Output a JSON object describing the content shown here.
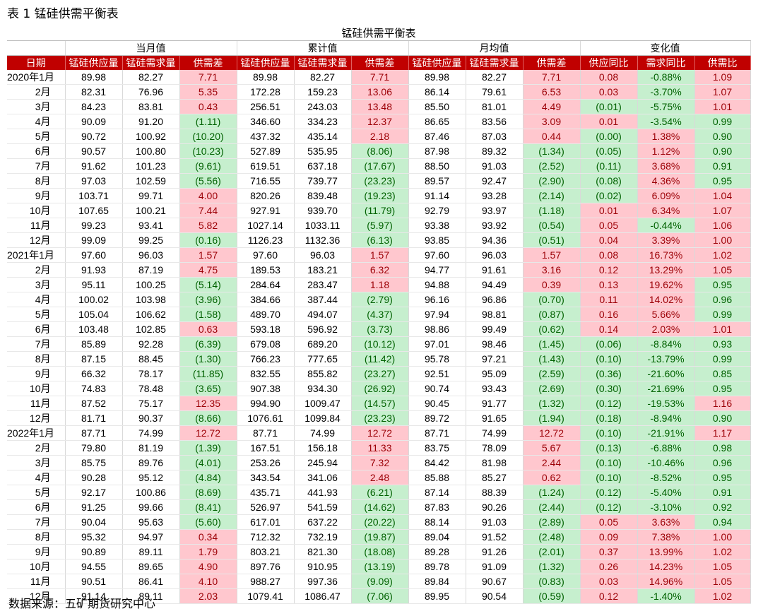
{
  "caption": "表 1 锰硅供需平衡表",
  "source": "数据来源：五矿期货研究中心",
  "table": {
    "title": "锰硅供需平衡表",
    "groups": [
      "当月值",
      "累计值",
      "月均值",
      "变化值"
    ],
    "headers": [
      "日期",
      "锰硅供应量",
      "锰硅需求量",
      "供需差",
      "锰硅供应量",
      "锰硅需求量",
      "供需差",
      "锰硅供应量",
      "锰硅需求量",
      "供需差",
      "供应同比",
      "需求同比",
      "供需比"
    ],
    "rows": [
      [
        "2020年1月",
        "89.98",
        "82.27",
        "7.71",
        "89.98",
        "82.27",
        "7.71",
        "89.98",
        "82.27",
        "7.71",
        "0.08",
        "-0.88%",
        "1.09"
      ],
      [
        "2月",
        "82.31",
        "76.96",
        "5.35",
        "172.28",
        "159.23",
        "13.06",
        "86.14",
        "79.61",
        "6.53",
        "0.03",
        "-3.70%",
        "1.07"
      ],
      [
        "3月",
        "84.23",
        "83.81",
        "0.43",
        "256.51",
        "243.03",
        "13.48",
        "85.50",
        "81.01",
        "4.49",
        "(0.01)",
        "-5.75%",
        "1.01"
      ],
      [
        "4月",
        "90.09",
        "91.20",
        "(1.11)",
        "346.60",
        "334.23",
        "12.37",
        "86.65",
        "83.56",
        "3.09",
        "0.01",
        "-3.54%",
        "0.99"
      ],
      [
        "5月",
        "90.72",
        "100.92",
        "(10.20)",
        "437.32",
        "435.14",
        "2.18",
        "87.46",
        "87.03",
        "0.44",
        "(0.00)",
        "1.38%",
        "0.90"
      ],
      [
        "6月",
        "90.57",
        "100.80",
        "(10.23)",
        "527.89",
        "535.95",
        "(8.06)",
        "87.98",
        "89.32",
        "(1.34)",
        "(0.05)",
        "1.12%",
        "0.90"
      ],
      [
        "7月",
        "91.62",
        "101.23",
        "(9.61)",
        "619.51",
        "637.18",
        "(17.67)",
        "88.50",
        "91.03",
        "(2.52)",
        "(0.11)",
        "3.68%",
        "0.91"
      ],
      [
        "8月",
        "97.03",
        "102.59",
        "(5.56)",
        "716.55",
        "739.77",
        "(23.23)",
        "89.57",
        "92.47",
        "(2.90)",
        "(0.08)",
        "4.36%",
        "0.95"
      ],
      [
        "9月",
        "103.71",
        "99.71",
        "4.00",
        "820.26",
        "839.48",
        "(19.23)",
        "91.14",
        "93.28",
        "(2.14)",
        "(0.02)",
        "6.09%",
        "1.04"
      ],
      [
        "10月",
        "107.65",
        "100.21",
        "7.44",
        "927.91",
        "939.70",
        "(11.79)",
        "92.79",
        "93.97",
        "(1.18)",
        "0.01",
        "6.34%",
        "1.07"
      ],
      [
        "11月",
        "99.23",
        "93.41",
        "5.82",
        "1027.14",
        "1033.11",
        "(5.97)",
        "93.38",
        "93.92",
        "(0.54)",
        "0.05",
        "-0.44%",
        "1.06"
      ],
      [
        "12月",
        "99.09",
        "99.25",
        "(0.16)",
        "1126.23",
        "1132.36",
        "(6.13)",
        "93.85",
        "94.36",
        "(0.51)",
        "0.04",
        "3.39%",
        "1.00"
      ],
      [
        "2021年1月",
        "97.60",
        "96.03",
        "1.57",
        "97.60",
        "96.03",
        "1.57",
        "97.60",
        "96.03",
        "1.57",
        "0.08",
        "16.73%",
        "1.02"
      ],
      [
        "2月",
        "91.93",
        "87.19",
        "4.75",
        "189.53",
        "183.21",
        "6.32",
        "94.77",
        "91.61",
        "3.16",
        "0.12",
        "13.29%",
        "1.05"
      ],
      [
        "3月",
        "95.11",
        "100.25",
        "(5.14)",
        "284.64",
        "283.47",
        "1.18",
        "94.88",
        "94.49",
        "0.39",
        "0.13",
        "19.62%",
        "0.95"
      ],
      [
        "4月",
        "100.02",
        "103.98",
        "(3.96)",
        "384.66",
        "387.44",
        "(2.79)",
        "96.16",
        "96.86",
        "(0.70)",
        "0.11",
        "14.02%",
        "0.96"
      ],
      [
        "5月",
        "105.04",
        "106.62",
        "(1.58)",
        "489.70",
        "494.07",
        "(4.37)",
        "97.94",
        "98.81",
        "(0.87)",
        "0.16",
        "5.66%",
        "0.99"
      ],
      [
        "6月",
        "103.48",
        "102.85",
        "0.63",
        "593.18",
        "596.92",
        "(3.73)",
        "98.86",
        "99.49",
        "(0.62)",
        "0.14",
        "2.03%",
        "1.01"
      ],
      [
        "7月",
        "85.89",
        "92.28",
        "(6.39)",
        "679.08",
        "689.20",
        "(10.12)",
        "97.01",
        "98.46",
        "(1.45)",
        "(0.06)",
        "-8.84%",
        "0.93"
      ],
      [
        "8月",
        "87.15",
        "88.45",
        "(1.30)",
        "766.23",
        "777.65",
        "(11.42)",
        "95.78",
        "97.21",
        "(1.43)",
        "(0.10)",
        "-13.79%",
        "0.99"
      ],
      [
        "9月",
        "66.32",
        "78.17",
        "(11.85)",
        "832.55",
        "855.82",
        "(23.27)",
        "92.51",
        "95.09",
        "(2.59)",
        "(0.36)",
        "-21.60%",
        "0.85"
      ],
      [
        "10月",
        "74.83",
        "78.48",
        "(3.65)",
        "907.38",
        "934.30",
        "(26.92)",
        "90.74",
        "93.43",
        "(2.69)",
        "(0.30)",
        "-21.69%",
        "0.95"
      ],
      [
        "11月",
        "87.52",
        "75.17",
        "12.35",
        "994.90",
        "1009.47",
        "(14.57)",
        "90.45",
        "91.77",
        "(1.32)",
        "(0.12)",
        "-19.53%",
        "1.16"
      ],
      [
        "12月",
        "81.71",
        "90.37",
        "(8.66)",
        "1076.61",
        "1099.84",
        "(23.23)",
        "89.72",
        "91.65",
        "(1.94)",
        "(0.18)",
        "-8.94%",
        "0.90"
      ],
      [
        "2022年1月",
        "87.71",
        "74.99",
        "12.72",
        "87.71",
        "74.99",
        "12.72",
        "87.71",
        "74.99",
        "12.72",
        "(0.10)",
        "-21.91%",
        "1.17"
      ],
      [
        "2月",
        "79.80",
        "81.19",
        "(1.39)",
        "167.51",
        "156.18",
        "11.33",
        "83.75",
        "78.09",
        "5.67",
        "(0.13)",
        "-6.88%",
        "0.98"
      ],
      [
        "3月",
        "85.75",
        "89.76",
        "(4.01)",
        "253.26",
        "245.94",
        "7.32",
        "84.42",
        "81.98",
        "2.44",
        "(0.10)",
        "-10.46%",
        "0.96"
      ],
      [
        "4月",
        "90.28",
        "95.12",
        "(4.84)",
        "343.54",
        "341.06",
        "2.48",
        "85.88",
        "85.27",
        "0.62",
        "(0.10)",
        "-8.52%",
        "0.95"
      ],
      [
        "5月",
        "92.17",
        "100.86",
        "(8.69)",
        "435.71",
        "441.93",
        "(6.21)",
        "87.14",
        "88.39",
        "(1.24)",
        "(0.12)",
        "-5.40%",
        "0.91"
      ],
      [
        "6月",
        "91.25",
        "99.66",
        "(8.41)",
        "526.97",
        "541.59",
        "(14.62)",
        "87.83",
        "90.26",
        "(2.44)",
        "(0.12)",
        "-3.10%",
        "0.92"
      ],
      [
        "7月",
        "90.04",
        "95.63",
        "(5.60)",
        "617.01",
        "637.22",
        "(20.22)",
        "88.14",
        "91.03",
        "(2.89)",
        "0.05",
        "3.63%",
        "0.94"
      ],
      [
        "8月",
        "95.32",
        "94.97",
        "0.34",
        "712.32",
        "732.19",
        "(19.87)",
        "89.04",
        "91.52",
        "(2.48)",
        "0.09",
        "7.38%",
        "1.00"
      ],
      [
        "9月",
        "90.89",
        "89.11",
        "1.79",
        "803.21",
        "821.30",
        "(18.08)",
        "89.28",
        "91.26",
        "(2.01)",
        "0.37",
        "13.99%",
        "1.02"
      ],
      [
        "10月",
        "94.55",
        "89.65",
        "4.90",
        "897.76",
        "910.95",
        "(13.19)",
        "89.78",
        "91.09",
        "(1.32)",
        "0.26",
        "14.23%",
        "1.05"
      ],
      [
        "11月",
        "90.51",
        "86.41",
        "4.10",
        "988.27",
        "997.36",
        "(9.09)",
        "89.84",
        "90.67",
        "(0.83)",
        "0.03",
        "14.96%",
        "1.05"
      ],
      [
        "12月",
        "91.14",
        "89.11",
        "2.03",
        "1079.41",
        "1086.47",
        "(7.06)",
        "89.95",
        "90.54",
        "(0.59)",
        "0.12",
        "-1.40%",
        "1.02"
      ]
    ]
  }
}
